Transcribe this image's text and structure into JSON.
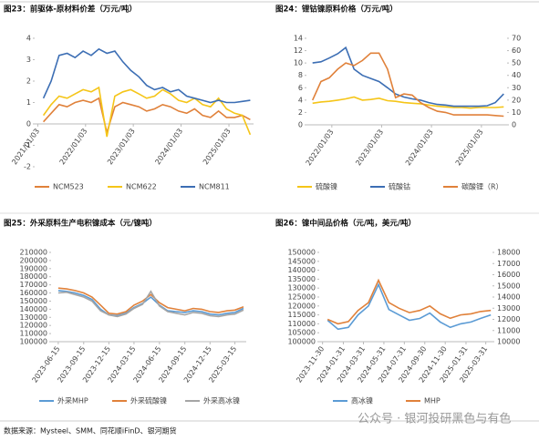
{
  "chart_data": [
    {
      "type": "line",
      "title": "图23：前驱体-原材料价差（万元/吨）",
      "x": [
        "2021-02-15",
        "2021-04-15",
        "2021-06-15",
        "2021-08-15",
        "2021-10-15",
        "2021-12-15",
        "2022-02-15",
        "2022-04-15",
        "2022-06-15",
        "2022-08-15",
        "2022-10-15",
        "2022-12-15",
        "2023-02-15",
        "2023-04-15",
        "2023-06-15",
        "2023-08-15",
        "2023-10-15",
        "2023-12-15",
        "2024-02-15",
        "2024-04-15",
        "2024-06-15",
        "2024-08-15",
        "2024-10-15",
        "2024-12-15",
        "2025-02-15",
        "2025-04-15",
        "2025-06-15"
      ],
      "xlim": [
        "2020-12-10",
        "2025-07-10"
      ],
      "xticks": [
        {
          "value": "2021-01-03",
          "label": "2021/01/03"
        },
        {
          "value": "2022-01-03",
          "label": "2022/01/03"
        },
        {
          "value": "2023-01-03",
          "label": "2023/01/03"
        },
        {
          "value": "2024-01-03",
          "label": "2024/01/03"
        },
        {
          "value": "2025-01-03",
          "label": "2025/01/03"
        }
      ],
      "ylim": [
        -2,
        4
      ],
      "yticks": [
        -2,
        -1,
        0,
        1,
        2,
        3,
        4
      ],
      "series": [
        {
          "name": "NCM523",
          "color": "#e0813a",
          "values": [
            0.1,
            0.5,
            0.9,
            0.8,
            1.0,
            1.1,
            1.0,
            1.2,
            -0.4,
            0.8,
            1.0,
            0.9,
            0.8,
            0.6,
            0.7,
            0.9,
            0.8,
            0.6,
            0.5,
            0.7,
            0.4,
            0.3,
            0.6,
            0.3,
            0.3,
            0.4,
            0.2
          ]
        },
        {
          "name": "NCM622",
          "color": "#f5c518",
          "values": [
            0.4,
            0.9,
            1.3,
            1.2,
            1.4,
            1.6,
            1.5,
            1.7,
            -0.6,
            1.3,
            1.5,
            1.6,
            1.4,
            1.2,
            1.3,
            1.6,
            1.4,
            1.1,
            1.0,
            1.2,
            0.9,
            0.8,
            1.2,
            0.7,
            0.5,
            0.4,
            -0.5
          ]
        },
        {
          "name": "NCM811",
          "color": "#3c6eb4",
          "values": [
            1.2,
            2.0,
            3.2,
            3.3,
            3.1,
            3.4,
            3.2,
            3.5,
            3.3,
            3.4,
            2.9,
            2.5,
            2.2,
            1.8,
            1.6,
            1.7,
            1.5,
            1.6,
            1.3,
            1.2,
            1.1,
            1.0,
            1.1,
            1.0,
            1.0,
            1.05,
            1.1
          ]
        }
      ]
    },
    {
      "type": "line",
      "title": "图24：锂钴镍原料价格（万元/吨）",
      "x": [
        "2021-08-15",
        "2021-10-15",
        "2021-12-15",
        "2022-02-15",
        "2022-04-15",
        "2022-06-15",
        "2022-08-15",
        "2022-10-15",
        "2022-12-15",
        "2023-02-15",
        "2023-04-15",
        "2023-06-15",
        "2023-08-15",
        "2023-10-15",
        "2023-12-15",
        "2024-02-15",
        "2024-04-15",
        "2024-06-15",
        "2024-08-15",
        "2024-10-15",
        "2024-12-15",
        "2025-02-15",
        "2025-04-15",
        "2025-06-15"
      ],
      "xlim": [
        "2021-07-01",
        "2025-07-10"
      ],
      "xticks": [
        {
          "value": "2022-01-03",
          "label": "2022/01/03"
        },
        {
          "value": "2023-01-03",
          "label": "2023/01/03"
        },
        {
          "value": "2024-01-03",
          "label": "2024/01/03"
        },
        {
          "value": "2025-01-03",
          "label": "2025/01/03"
        }
      ],
      "ylim": [
        0,
        14
      ],
      "yticks": [
        0,
        2,
        4,
        6,
        8,
        10,
        12,
        14
      ],
      "y2lim": [
        0,
        70
      ],
      "y2ticks": [
        0,
        10,
        20,
        30,
        40,
        50,
        60,
        70
      ],
      "series": [
        {
          "name": "硫酸镍",
          "color": "#f5c518",
          "values": [
            3.5,
            3.7,
            3.8,
            4.0,
            4.2,
            4.5,
            4.0,
            4.1,
            4.3,
            3.9,
            3.8,
            3.6,
            3.5,
            3.4,
            3.2,
            3.0,
            2.9,
            2.8,
            2.8,
            2.7,
            2.8,
            2.8,
            2.8,
            2.9
          ]
        },
        {
          "name": "硫酸钴",
          "color": "#3c6eb4",
          "values": [
            10.0,
            10.2,
            10.8,
            11.5,
            12.5,
            9.0,
            8.0,
            7.5,
            7.0,
            6.0,
            5.0,
            4.5,
            4.2,
            4.0,
            3.6,
            3.3,
            3.2,
            3.0,
            3.0,
            3.0,
            3.0,
            3.1,
            3.6,
            5.0
          ]
        },
        {
          "name": "碳酸锂（R）",
          "color": "#e0813a",
          "axis": "y2",
          "values": [
            20,
            35,
            38,
            45,
            50,
            48,
            52,
            58,
            58,
            45,
            22,
            25,
            24,
            18,
            14,
            11,
            10,
            8,
            8,
            8,
            8,
            8,
            7.5,
            7
          ]
        }
      ]
    },
    {
      "type": "line",
      "title": "图25：外采原料生产电积镍成本（元/镍吨）",
      "x": [
        "2023-06-15",
        "2023-07-15",
        "2023-08-15",
        "2023-09-15",
        "2023-10-15",
        "2023-11-15",
        "2023-12-15",
        "2024-01-15",
        "2024-02-15",
        "2024-03-15",
        "2024-04-15",
        "2024-05-15",
        "2024-06-15",
        "2024-07-15",
        "2024-08-15",
        "2024-09-15",
        "2024-10-15",
        "2024-11-15",
        "2024-12-15",
        "2025-01-15",
        "2025-02-15",
        "2025-03-15",
        "2025-04-15"
      ],
      "xlim": [
        "2023-05-20",
        "2025-04-25"
      ],
      "xticks": [
        "2023-06-15",
        "2023-09-15",
        "2023-12-15",
        "2024-03-15",
        "2024-06-15",
        "2024-09-15",
        "2024-12-15",
        "2025-03-15"
      ],
      "ylim": [
        100000,
        210000
      ],
      "yticks": [
        100000,
        110000,
        120000,
        130000,
        140000,
        150000,
        160000,
        170000,
        180000,
        190000,
        200000,
        210000
      ],
      "series": [
        {
          "name": "外采MHP",
          "color": "#5b9bd5",
          "values": [
            163000,
            162000,
            160000,
            157000,
            152000,
            140000,
            133000,
            132000,
            135000,
            142000,
            147000,
            155000,
            145000,
            138000,
            137000,
            136000,
            138000,
            137000,
            134000,
            133000,
            135000,
            136000,
            141000
          ]
        },
        {
          "name": "外采硫酸镍",
          "color": "#e0813a",
          "values": [
            166000,
            165000,
            163000,
            160000,
            155000,
            145000,
            135000,
            134000,
            137000,
            145000,
            150000,
            158000,
            148000,
            142000,
            140000,
            138000,
            141000,
            140000,
            137000,
            136000,
            138000,
            139000,
            143000
          ]
        },
        {
          "name": "外采高冰镍",
          "color": "#a5a5a5",
          "values": [
            160000,
            161000,
            158000,
            155000,
            150000,
            138000,
            133000,
            131000,
            134000,
            141000,
            146000,
            162000,
            144000,
            137000,
            135000,
            133000,
            136000,
            135000,
            132000,
            131000,
            133000,
            134000,
            139000
          ]
        }
      ]
    },
    {
      "type": "line",
      "title": "图26：镍中间品价格（元/吨，美元/吨）",
      "x": [
        "2023-12-15",
        "2024-01-15",
        "2024-02-15",
        "2024-03-15",
        "2024-04-15",
        "2024-05-15",
        "2024-06-15",
        "2024-07-15",
        "2024-08-15",
        "2024-09-15",
        "2024-10-15",
        "2024-11-15",
        "2024-12-15",
        "2025-01-15",
        "2025-02-15",
        "2025-03-15",
        "2025-04-15"
      ],
      "xlim": [
        "2023-11-20",
        "2025-04-20"
      ],
      "xticks": [
        "2023-11-30",
        "2024-01-31",
        "2024-03-31",
        "2024-05-31",
        "2024-07-31",
        "2024-09-30",
        "2024-11-30",
        "2025-01-31",
        "2025-03-31"
      ],
      "ylim": [
        100000,
        150000
      ],
      "yticks": [
        100000,
        105000,
        110000,
        115000,
        120000,
        125000,
        130000,
        135000,
        140000,
        145000,
        150000
      ],
      "y2lim": [
        10000,
        18000
      ],
      "y2ticks": [
        10000,
        11000,
        12000,
        13000,
        14000,
        15000,
        16000,
        17000,
        18000
      ],
      "series": [
        {
          "name": "高冰镍",
          "color": "#5b9bd5",
          "values": [
            112000,
            107000,
            108000,
            115000,
            120000,
            132000,
            118000,
            115000,
            112000,
            113000,
            116000,
            111000,
            108000,
            110000,
            111000,
            113000,
            115000
          ]
        },
        {
          "name": "MHP",
          "color": "#e0813a",
          "axis": "y2",
          "values": [
            12000,
            11600,
            11800,
            12800,
            13500,
            15500,
            13500,
            13000,
            12600,
            12800,
            13200,
            12500,
            12100,
            12400,
            12500,
            12700,
            12800
          ]
        }
      ]
    }
  ],
  "source": "数据来源：Mysteel、SMM、同花顺iFinD、银河期货",
  "watermark": "公众号 · 银河投研黑色与有色"
}
